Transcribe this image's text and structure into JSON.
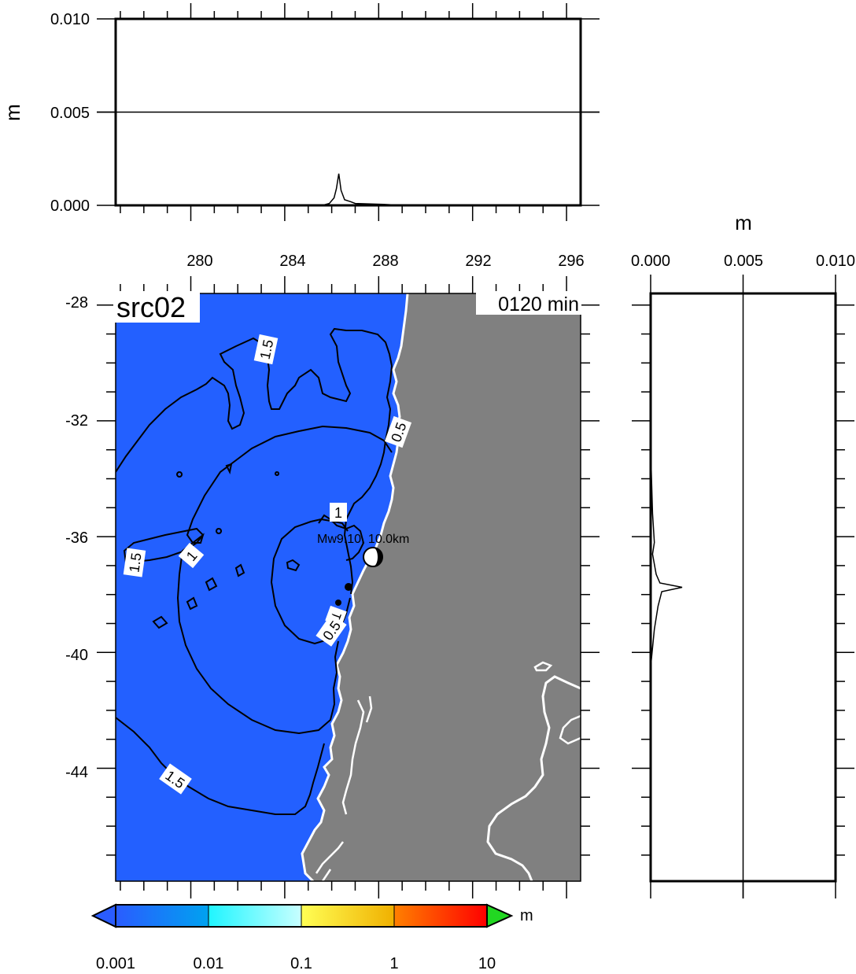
{
  "chart_data": [
    {
      "type": "line",
      "panel": "top-profile",
      "ylabel": "m",
      "yticks": [
        "0.000",
        "0.005",
        "0.010"
      ],
      "ylim": [
        0,
        0.01
      ],
      "xlim": [
        276.8,
        296.6
      ],
      "reference_lines": [
        0.005
      ],
      "series": [
        {
          "points": [
            [
              285.6,
              0
            ],
            [
              285.9,
              0.0001
            ],
            [
              286.1,
              0.0004
            ],
            [
              286.2,
              0.0009
            ],
            [
              286.3,
              0.0017
            ],
            [
              286.4,
              0.0008
            ],
            [
              286.55,
              0.0003
            ],
            [
              286.8,
              0.0002
            ],
            [
              287.0,
              0.0001
            ],
            [
              288.2,
              5e-05
            ],
            [
              289,
              0
            ]
          ]
        }
      ]
    },
    {
      "type": "heatmap",
      "panel": "map",
      "label": "src02",
      "time_label": "0120 min",
      "xticks": [
        "280",
        "284",
        "288",
        "292",
        "296"
      ],
      "yticks": [
        "-28",
        "-32",
        "-36",
        "-40",
        "-44"
      ],
      "xlim": [
        276.8,
        296.6
      ],
      "ylim": [
        -47.9,
        -27.6
      ],
      "contour_labels": [
        "1.5",
        "0.5",
        "1",
        "1.5",
        "1",
        "1",
        "0.5",
        "1.5"
      ],
      "epicenter_label": "Mw9.10, 10.0km",
      "colors": {
        "ocean": "#2360ff",
        "land": "#808080",
        "coast": "#ffffff"
      }
    },
    {
      "type": "line",
      "panel": "right-profile",
      "xlabel": "m",
      "xticks": [
        "0.000",
        "0.005",
        "0.010"
      ],
      "xlim": [
        0,
        0.01
      ],
      "ylim": [
        -47.9,
        -27.6
      ],
      "reference_lines": [
        0.005
      ],
      "series": [
        {
          "points": [
            [
              0.0,
              -33
            ],
            [
              0.0001,
              -35.2
            ],
            [
              0.0002,
              -36.2
            ],
            [
              0.0001,
              -36.6
            ],
            [
              0.0003,
              -37.3
            ],
            [
              0.0005,
              -37.6
            ],
            [
              0.0017,
              -37.75
            ],
            [
              0.0006,
              -37.9
            ],
            [
              0.0004,
              -38.4
            ],
            [
              0.0002,
              -39.2
            ],
            [
              0.0,
              -40.5
            ]
          ]
        }
      ]
    },
    {
      "type": "colorbar",
      "panel": "colorbar",
      "unit": "m",
      "ticks": [
        "0.001",
        "0.01",
        "0.1",
        "1",
        "10"
      ],
      "scale": "log",
      "colors": {
        "band1_start": "#2a5cff",
        "band1_end": "#00a2f0",
        "band2_start": "#1ff5ff",
        "band2_end": "#c8ffff",
        "band3_start": "#ffff55",
        "band3_end": "#f0b000",
        "band4_start": "#ff8000",
        "band4_end": "#ff0000",
        "over": "#22d722",
        "under": "#2a5cff"
      }
    }
  ]
}
